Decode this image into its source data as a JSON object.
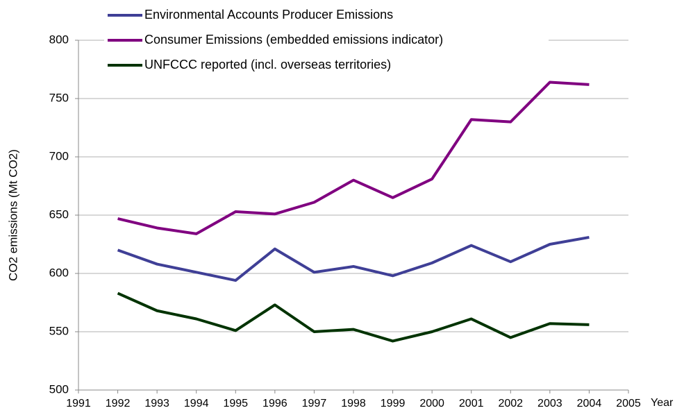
{
  "chart_data": {
    "type": "line",
    "y_label": "CO2 emissions (Mt CO2)",
    "x_label": "Year",
    "x": [
      1992,
      1993,
      1994,
      1995,
      1996,
      1997,
      1998,
      1999,
      2000,
      2001,
      2002,
      2003,
      2004
    ],
    "series": [
      {
        "name": "Environmental Accounts Producer Emissions",
        "color": "#3f3f96",
        "values": [
          620,
          608,
          601,
          594,
          621,
          601,
          606,
          598,
          609,
          624,
          610,
          625,
          631
        ]
      },
      {
        "name": "Consumer Emissions (embedded emissions indicator)",
        "color": "#800080",
        "values": [
          647,
          639,
          634,
          653,
          651,
          661,
          680,
          665,
          681,
          732,
          730,
          764,
          762
        ]
      },
      {
        "name": "UNFCCC reported (incl. overseas territories)",
        "color": "#003300",
        "values": [
          583,
          568,
          561,
          551,
          573,
          550,
          552,
          542,
          550,
          561,
          545,
          557,
          556
        ]
      }
    ],
    "xlim": [
      1991,
      2005
    ],
    "xticks": [
      1991,
      1992,
      1993,
      1994,
      1995,
      1996,
      1997,
      1998,
      1999,
      2000,
      2001,
      2002,
      2003,
      2004,
      2005
    ],
    "ylim": [
      500,
      800
    ],
    "yticks": [
      500,
      550,
      600,
      650,
      700,
      750,
      800
    ],
    "grid": true,
    "legend": "top-left"
  }
}
